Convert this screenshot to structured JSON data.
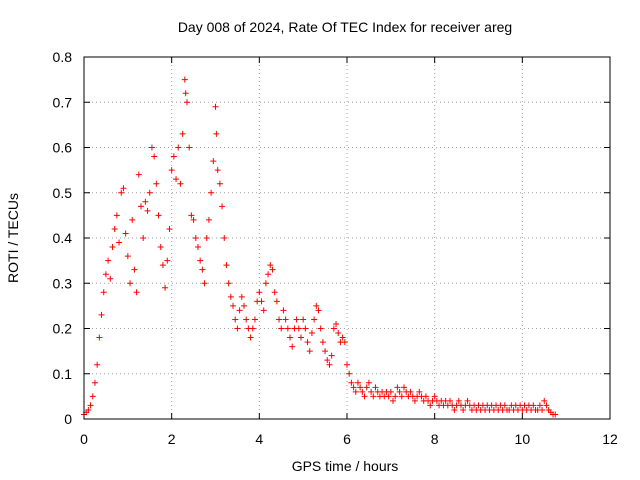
{
  "chart_data": {
    "type": "scatter",
    "title": "Day 008 of 2024, Rate Of TEC Index for receiver areg",
    "xlabel": "GPS time / hours",
    "ylabel": "ROTI / TECUs",
    "xlim": [
      0,
      12
    ],
    "ylim": [
      0,
      0.8
    ],
    "xticks": [
      0,
      2,
      4,
      6,
      8,
      10,
      12
    ],
    "yticks": [
      0,
      0.1,
      0.2,
      0.3,
      0.4,
      0.5,
      0.6,
      0.7,
      0.8
    ],
    "xtick_labels": [
      "0",
      "2",
      "4",
      "6",
      "8",
      "10",
      "12"
    ],
    "ytick_labels": [
      "0",
      "0.1",
      "0.2",
      "0.3",
      "0.4",
      "0.5",
      "0.6",
      "0.7",
      "0.8"
    ],
    "grid": true,
    "marker": "plus",
    "color": "#ff0000",
    "series": [
      {
        "name": "ROTI",
        "points": [
          [
            0.0,
            0.01
          ],
          [
            0.05,
            0.015
          ],
          [
            0.1,
            0.02
          ],
          [
            0.15,
            0.03
          ],
          [
            0.2,
            0.05
          ],
          [
            0.25,
            0.08
          ],
          [
            0.3,
            0.12
          ],
          [
            0.35,
            0.18
          ],
          [
            0.4,
            0.23
          ],
          [
            0.45,
            0.28
          ],
          [
            0.5,
            0.32
          ],
          [
            0.55,
            0.35
          ],
          [
            0.6,
            0.31
          ],
          [
            0.65,
            0.38
          ],
          [
            0.7,
            0.42
          ],
          [
            0.75,
            0.45
          ],
          [
            0.8,
            0.39
          ],
          [
            0.85,
            0.5
          ],
          [
            0.9,
            0.51
          ],
          [
            0.95,
            0.41
          ],
          [
            1.0,
            0.36
          ],
          [
            1.05,
            0.3
          ],
          [
            1.1,
            0.44
          ],
          [
            1.15,
            0.33
          ],
          [
            1.2,
            0.28
          ],
          [
            1.25,
            0.54
          ],
          [
            1.3,
            0.47
          ],
          [
            1.35,
            0.4
          ],
          [
            1.4,
            0.48
          ],
          [
            1.45,
            0.46
          ],
          [
            1.5,
            0.5
          ],
          [
            1.55,
            0.6
          ],
          [
            1.6,
            0.58
          ],
          [
            1.65,
            0.52
          ],
          [
            1.7,
            0.45
          ],
          [
            1.75,
            0.38
          ],
          [
            1.8,
            0.34
          ],
          [
            1.85,
            0.29
          ],
          [
            1.9,
            0.35
          ],
          [
            1.95,
            0.42
          ],
          [
            2.0,
            0.55
          ],
          [
            2.05,
            0.58
          ],
          [
            2.1,
            0.53
          ],
          [
            2.15,
            0.6
          ],
          [
            2.2,
            0.52
          ],
          [
            2.25,
            0.63
          ],
          [
            2.3,
            0.75
          ],
          [
            2.32,
            0.72
          ],
          [
            2.35,
            0.7
          ],
          [
            2.4,
            0.6
          ],
          [
            2.45,
            0.45
          ],
          [
            2.5,
            0.44
          ],
          [
            2.55,
            0.4
          ],
          [
            2.6,
            0.38
          ],
          [
            2.65,
            0.35
          ],
          [
            2.7,
            0.33
          ],
          [
            2.75,
            0.3
          ],
          [
            2.8,
            0.4
          ],
          [
            2.85,
            0.44
          ],
          [
            2.9,
            0.5
          ],
          [
            2.95,
            0.57
          ],
          [
            3.0,
            0.69
          ],
          [
            3.02,
            0.63
          ],
          [
            3.05,
            0.55
          ],
          [
            3.1,
            0.52
          ],
          [
            3.15,
            0.47
          ],
          [
            3.2,
            0.4
          ],
          [
            3.25,
            0.34
          ],
          [
            3.3,
            0.3
          ],
          [
            3.35,
            0.27
          ],
          [
            3.4,
            0.25
          ],
          [
            3.45,
            0.22
          ],
          [
            3.5,
            0.2
          ],
          [
            3.55,
            0.24
          ],
          [
            3.6,
            0.27
          ],
          [
            3.65,
            0.25
          ],
          [
            3.7,
            0.22
          ],
          [
            3.75,
            0.2
          ],
          [
            3.8,
            0.18
          ],
          [
            3.85,
            0.2
          ],
          [
            3.9,
            0.22
          ],
          [
            3.95,
            0.26
          ],
          [
            4.0,
            0.28
          ],
          [
            4.05,
            0.26
          ],
          [
            4.1,
            0.24
          ],
          [
            4.15,
            0.3
          ],
          [
            4.2,
            0.32
          ],
          [
            4.25,
            0.34
          ],
          [
            4.3,
            0.33
          ],
          [
            4.35,
            0.28
          ],
          [
            4.4,
            0.26
          ],
          [
            4.45,
            0.22
          ],
          [
            4.5,
            0.2
          ],
          [
            4.55,
            0.24
          ],
          [
            4.6,
            0.22
          ],
          [
            4.65,
            0.2
          ],
          [
            4.7,
            0.18
          ],
          [
            4.75,
            0.16
          ],
          [
            4.8,
            0.2
          ],
          [
            4.85,
            0.22
          ],
          [
            4.9,
            0.2
          ],
          [
            4.95,
            0.18
          ],
          [
            5.0,
            0.22
          ],
          [
            5.05,
            0.2
          ],
          [
            5.1,
            0.17
          ],
          [
            5.15,
            0.15
          ],
          [
            5.2,
            0.19
          ],
          [
            5.25,
            0.22
          ],
          [
            5.3,
            0.25
          ],
          [
            5.35,
            0.24
          ],
          [
            5.4,
            0.2
          ],
          [
            5.45,
            0.17
          ],
          [
            5.5,
            0.15
          ],
          [
            5.55,
            0.13
          ],
          [
            5.6,
            0.12
          ],
          [
            5.65,
            0.14
          ],
          [
            5.7,
            0.2
          ],
          [
            5.75,
            0.21
          ],
          [
            5.8,
            0.19
          ],
          [
            5.85,
            0.17
          ],
          [
            5.9,
            0.18
          ],
          [
            5.95,
            0.17
          ],
          [
            6.0,
            0.12
          ],
          [
            6.05,
            0.1
          ],
          [
            6.1,
            0.08
          ],
          [
            6.15,
            0.07
          ],
          [
            6.2,
            0.06
          ],
          [
            6.25,
            0.08
          ],
          [
            6.3,
            0.07
          ],
          [
            6.35,
            0.06
          ],
          [
            6.4,
            0.05
          ],
          [
            6.45,
            0.07
          ],
          [
            6.5,
            0.08
          ],
          [
            6.55,
            0.06
          ],
          [
            6.6,
            0.05
          ],
          [
            6.65,
            0.07
          ],
          [
            6.7,
            0.06
          ],
          [
            6.75,
            0.05
          ],
          [
            6.8,
            0.06
          ],
          [
            6.85,
            0.05
          ],
          [
            6.9,
            0.06
          ],
          [
            6.95,
            0.05
          ],
          [
            7.0,
            0.06
          ],
          [
            7.05,
            0.04
          ],
          [
            7.1,
            0.05
          ],
          [
            7.15,
            0.07
          ],
          [
            7.2,
            0.06
          ],
          [
            7.25,
            0.05
          ],
          [
            7.3,
            0.07
          ],
          [
            7.35,
            0.06
          ],
          [
            7.4,
            0.05
          ],
          [
            7.45,
            0.06
          ],
          [
            7.5,
            0.05
          ],
          [
            7.55,
            0.04
          ],
          [
            7.6,
            0.05
          ],
          [
            7.65,
            0.06
          ],
          [
            7.7,
            0.05
          ],
          [
            7.75,
            0.04
          ],
          [
            7.8,
            0.05
          ],
          [
            7.85,
            0.04
          ],
          [
            7.9,
            0.03
          ],
          [
            7.95,
            0.04
          ],
          [
            8.0,
            0.05
          ],
          [
            8.05,
            0.04
          ],
          [
            8.1,
            0.03
          ],
          [
            8.15,
            0.04
          ],
          [
            8.2,
            0.03
          ],
          [
            8.25,
            0.04
          ],
          [
            8.3,
            0.03
          ],
          [
            8.35,
            0.04
          ],
          [
            8.4,
            0.03
          ],
          [
            8.45,
            0.02
          ],
          [
            8.5,
            0.03
          ],
          [
            8.55,
            0.04
          ],
          [
            8.6,
            0.03
          ],
          [
            8.65,
            0.02
          ],
          [
            8.7,
            0.03
          ],
          [
            8.75,
            0.04
          ],
          [
            8.8,
            0.03
          ],
          [
            8.85,
            0.02
          ],
          [
            8.9,
            0.03
          ],
          [
            8.95,
            0.02
          ],
          [
            9.0,
            0.03
          ],
          [
            9.05,
            0.02
          ],
          [
            9.1,
            0.03
          ],
          [
            9.15,
            0.02
          ],
          [
            9.2,
            0.03
          ],
          [
            9.25,
            0.02
          ],
          [
            9.3,
            0.03
          ],
          [
            9.35,
            0.02
          ],
          [
            9.4,
            0.03
          ],
          [
            9.45,
            0.02
          ],
          [
            9.5,
            0.03
          ],
          [
            9.55,
            0.02
          ],
          [
            9.6,
            0.03
          ],
          [
            9.65,
            0.02
          ],
          [
            9.7,
            0.02
          ],
          [
            9.75,
            0.03
          ],
          [
            9.8,
            0.02
          ],
          [
            9.85,
            0.03
          ],
          [
            9.9,
            0.02
          ],
          [
            9.95,
            0.03
          ],
          [
            10.0,
            0.02
          ],
          [
            10.05,
            0.03
          ],
          [
            10.1,
            0.02
          ],
          [
            10.15,
            0.03
          ],
          [
            10.2,
            0.02
          ],
          [
            10.25,
            0.03
          ],
          [
            10.3,
            0.02
          ],
          [
            10.35,
            0.02
          ],
          [
            10.4,
            0.03
          ],
          [
            10.45,
            0.02
          ],
          [
            10.5,
            0.04
          ],
          [
            10.55,
            0.03
          ],
          [
            10.6,
            0.02
          ],
          [
            10.65,
            0.015
          ],
          [
            10.7,
            0.01
          ],
          [
            10.75,
            0.01
          ]
        ]
      }
    ]
  }
}
